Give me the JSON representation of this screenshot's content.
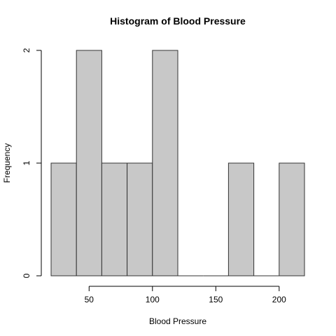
{
  "chart_data": {
    "type": "bar",
    "title": "Histogram of Blood Pressure",
    "xlabel": "Blood Pressure",
    "ylabel": "Frequency",
    "bins": [
      {
        "start": 20,
        "end": 40,
        "count": 1
      },
      {
        "start": 40,
        "end": 60,
        "count": 2
      },
      {
        "start": 60,
        "end": 80,
        "count": 1
      },
      {
        "start": 80,
        "end": 100,
        "count": 1
      },
      {
        "start": 100,
        "end": 120,
        "count": 2
      },
      {
        "start": 120,
        "end": 140,
        "count": 0
      },
      {
        "start": 140,
        "end": 160,
        "count": 0
      },
      {
        "start": 160,
        "end": 180,
        "count": 1
      },
      {
        "start": 180,
        "end": 200,
        "count": 0
      },
      {
        "start": 200,
        "end": 220,
        "count": 1
      }
    ],
    "xticks": [
      50,
      100,
      150,
      200
    ],
    "yticks": [
      0,
      1,
      2
    ],
    "xlim": [
      20,
      220
    ],
    "ylim": [
      0,
      2
    ],
    "grid": false,
    "bar_color": "#c8c8c8",
    "bar_border_color": "#333333"
  }
}
